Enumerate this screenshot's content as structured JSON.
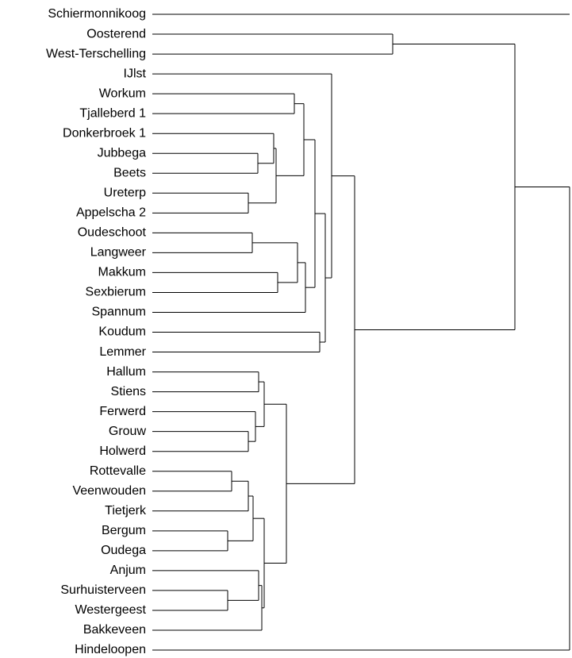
{
  "leaves": [
    "Schiermonnikoog",
    "Oosterend",
    "West-Terschelling",
    "IJlst",
    "Workum",
    "Tjalleberd 1",
    "Donkerbroek 1",
    "Jubbega",
    "Beets",
    "Ureterp",
    "Appelscha 2",
    "Oudeschoot",
    "Langweer",
    "Makkum",
    "Sexbierum",
    "Spannum",
    "Koudum",
    "Lemmer",
    "Hallum",
    "Stiens",
    "Ferwerd",
    "Grouw",
    "Holwerd",
    "Rottevalle",
    "Veenwouden",
    "Tietjerk",
    "Bergum",
    "Oudega",
    "Anjum",
    "Surhuisterveen",
    "Westergeest",
    "Bakkeveen",
    "Hindeloopen"
  ]
}
